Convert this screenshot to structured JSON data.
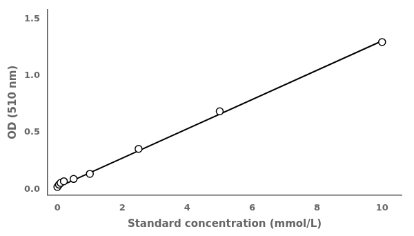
{
  "chart_data": {
    "type": "scatter",
    "xlabel": "Standard concentration (mmol/L)",
    "ylabel": "OD (510 nm)",
    "xlim": [
      -0.3,
      10.6
    ],
    "ylim": [
      -0.05,
      1.58
    ],
    "xticks": [
      0,
      2,
      4,
      6,
      8,
      10
    ],
    "yticks": [
      {
        "value": 0,
        "label": "0.0"
      },
      0.5,
      {
        "value": 1,
        "label": "1.0"
      },
      1.5
    ],
    "grid": false,
    "series": [
      {
        "type": "line",
        "color": "black",
        "line_style": "solid",
        "x": [
          0.0,
          10.0
        ],
        "values": [
          0.015,
          1.305
        ]
      },
      {
        "type": "scatter",
        "color": "black",
        "marker": "open_circle",
        "x": [
          0.0,
          0.05,
          0.1,
          0.2,
          0.5,
          1.0,
          2.5,
          5.0,
          10.0
        ],
        "values": [
          0.02,
          0.04,
          0.055,
          0.07,
          0.09,
          0.135,
          0.355,
          0.685,
          1.295
        ]
      }
    ]
  }
}
